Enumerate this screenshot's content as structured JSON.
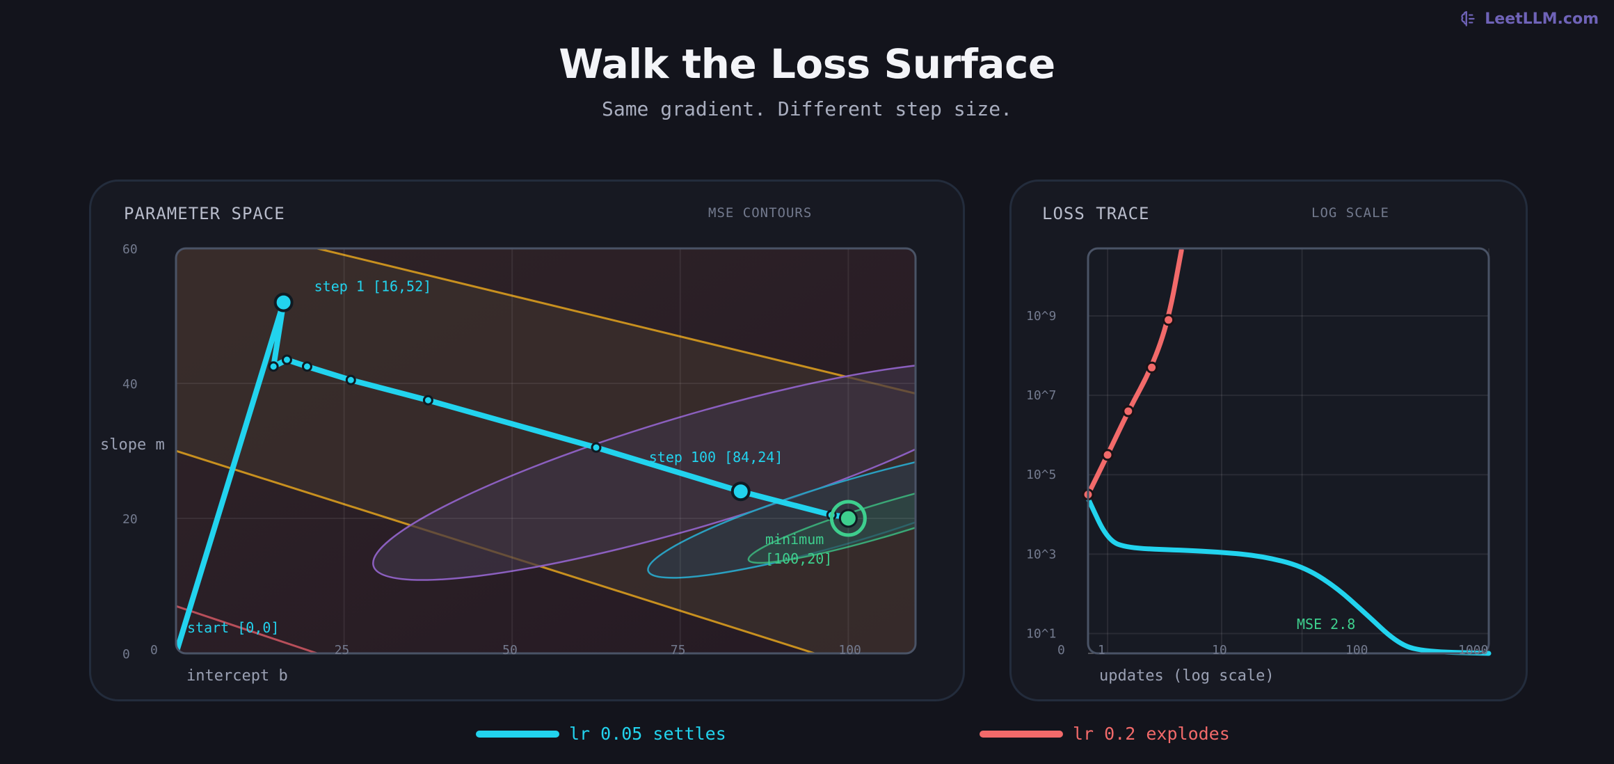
{
  "brand": {
    "icon": "brain-icon",
    "label": "LeetLLM.com"
  },
  "header": {
    "title": "Walk the Loss Surface",
    "subtitle": "Same gradient. Different step size."
  },
  "colors": {
    "background": "#13141c",
    "settle": "#22d3ee",
    "explode": "#f26a6a",
    "minimum": "#3ecf8e",
    "contour_outer": "#c8901f",
    "contour_mid": "#8b5fbf",
    "contour_inner": "#2a9fc0"
  },
  "panels": {
    "param": {
      "heading": "PARAMETER SPACE",
      "tag": "MSE CONTOURS"
    },
    "loss": {
      "heading": "LOSS TRACE",
      "tag": "LOG SCALE"
    }
  },
  "chart_data": [
    {
      "type": "line",
      "panel": "param",
      "xlabel": "intercept b",
      "ylabel": "slope m",
      "xlim": [
        0,
        110
      ],
      "ylim": [
        0,
        60
      ],
      "x_ticks": [
        0,
        25,
        50,
        75,
        100
      ],
      "y_ticks": [
        0,
        20,
        40,
        60
      ],
      "x_tick_labels": [
        "0",
        "25",
        "50",
        "75",
        "100"
      ],
      "y_tick_labels": [
        "0",
        "20",
        "40",
        "60"
      ],
      "grid": true,
      "minimum": {
        "x": 100,
        "y": 20,
        "label_line1": "minimum",
        "label_line2": "[100,20]"
      },
      "series": [
        {
          "points": [
            [
              0,
              0
            ],
            [
              16,
              52
            ],
            [
              14.5,
              42.5
            ],
            [
              16.5,
              43.5
            ],
            [
              19.5,
              42.5
            ],
            [
              26,
              40.5
            ],
            [
              37.5,
              37.5
            ],
            [
              62.5,
              30.5
            ],
            [
              84,
              24
            ],
            [
              97.5,
              20.5
            ],
            [
              99,
              20.3
            ],
            [
              100,
              20
            ]
          ],
          "markers": [
            [
              14.5,
              42.5
            ],
            [
              16.5,
              43.5
            ],
            [
              19.5,
              42.5
            ],
            [
              26,
              40.5
            ],
            [
              37.5,
              37.5
            ],
            [
              62.5,
              30.5
            ],
            [
              97.5,
              20.5
            ]
          ],
          "highlights": [
            [
              16,
              52
            ],
            [
              84,
              24
            ]
          ]
        }
      ],
      "annotations": [
        {
          "text": "start [0,0]",
          "x": 0,
          "y": 0
        },
        {
          "text": "step 1 [16,52]",
          "x": 16,
          "y": 52
        },
        {
          "text": "step 100 [84,24]",
          "x": 84,
          "y": 24
        }
      ],
      "contours": [
        {
          "level": "outer",
          "type": "band"
        },
        {
          "level": "mid",
          "type": "ellipse"
        },
        {
          "level": "inner",
          "type": "ellipse"
        },
        {
          "level": "core",
          "type": "ellipse"
        }
      ]
    },
    {
      "type": "line",
      "panel": "loss",
      "xlabel": "updates (log scale)",
      "x_scale": "log",
      "y_scale": "log",
      "xlim": [
        1,
        1000
      ],
      "ylim_log10": [
        0.5,
        10.7
      ],
      "x_tick_labels": [
        "1",
        "10",
        "100",
        "1000"
      ],
      "y_tick_labels": [
        "0",
        "10^1",
        "10^3",
        "10^5",
        "10^7",
        "10^9"
      ],
      "grid": true,
      "annotation": "MSE 2.8",
      "series": [
        {
          "name": "lr 0.05 settles",
          "color": "#22d3ee",
          "points": [
            [
              1,
              4.4
            ],
            [
              1.4,
              3.35
            ],
            [
              2,
              3.15
            ],
            [
              5,
              3.1
            ],
            [
              10,
              3.05
            ],
            [
              20,
              2.95
            ],
            [
              40,
              2.7
            ],
            [
              70,
              2.2
            ],
            [
              120,
              1.5
            ],
            [
              200,
              0.8
            ],
            [
              300,
              0.55
            ],
            [
              1000,
              0.5
            ]
          ]
        },
        {
          "name": "lr 0.2 explodes",
          "color": "#f26a6a",
          "points": [
            [
              1,
              4.5
            ],
            [
              1.4,
              5.5
            ],
            [
              2,
              6.6
            ],
            [
              3,
              7.7
            ],
            [
              4,
              8.9
            ],
            [
              5,
              10.65
            ]
          ],
          "markers": [
            [
              1,
              4.5
            ],
            [
              1.4,
              5.5
            ],
            [
              2,
              6.6
            ],
            [
              3,
              7.7
            ],
            [
              4,
              8.9
            ]
          ]
        }
      ]
    }
  ],
  "legend": [
    {
      "label": "lr 0.05 settles",
      "color": "#22d3ee"
    },
    {
      "label": "lr 0.2 explodes",
      "color": "#f26a6a"
    }
  ]
}
